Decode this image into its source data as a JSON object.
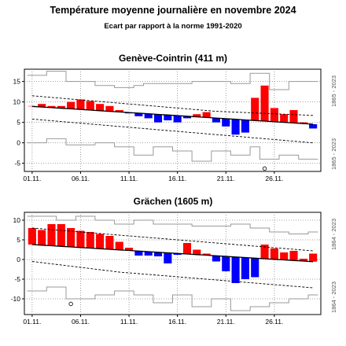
{
  "title": "Température moyenne journalière en novembre 2024",
  "subtitle": "Ecart par rapport à la norme 1991-2020",
  "colors": {
    "above": "#ff0000",
    "below": "#0000ff",
    "norm": "#000000",
    "envelope": "#999999",
    "grid": "#888888"
  },
  "chart_data": [
    {
      "type": "bar",
      "station": "Genève-Cointrin (411 m)",
      "side_label_top": "1865 - 2023",
      "side_label_bottom": "1865 - 2023",
      "x_ticks": [
        "01.11.",
        "06.11.",
        "11.11.",
        "16.11.",
        "21.11.",
        "26.11."
      ],
      "y_ticks": [
        -5,
        0,
        5,
        10,
        15
      ],
      "ylim": [
        -7,
        18
      ],
      "days": [
        1,
        2,
        3,
        4,
        5,
        6,
        7,
        8,
        9,
        10,
        11,
        12,
        13,
        14,
        15,
        16,
        17,
        18,
        19,
        20,
        21,
        22,
        23,
        24,
        25,
        26,
        27,
        28,
        29,
        30
      ],
      "mean_temp": [
        9,
        9.5,
        9,
        9,
        10,
        10.6,
        10.2,
        9.5,
        9,
        8,
        7.2,
        6.5,
        6,
        5,
        5.5,
        5,
        6,
        7,
        7.5,
        5,
        4,
        2,
        2.5,
        11,
        14,
        8.5,
        7,
        8,
        5,
        3.5
      ],
      "norm": [
        8.9,
        8.75,
        8.6,
        8.45,
        8.3,
        8.15,
        8.0,
        7.85,
        7.7,
        7.55,
        7.4,
        7.25,
        7.1,
        6.95,
        6.8,
        6.65,
        6.5,
        6.35,
        6.2,
        6.05,
        5.9,
        5.75,
        5.6,
        5.45,
        5.3,
        5.15,
        5.0,
        4.85,
        4.7,
        4.55
      ],
      "upper_band": [
        11.5,
        11.3,
        11.1,
        10.9,
        10.7,
        10.5,
        10.3,
        10.1,
        9.9,
        9.7,
        9.5,
        9.3,
        9.1,
        8.9,
        8.7,
        8.5,
        8.3,
        8.1,
        7.9,
        7.7,
        7.6,
        7.5,
        7.4,
        7.3,
        7.2,
        7.1,
        7.0,
        6.9,
        6.8,
        6.7
      ],
      "lower_band": [
        5.8,
        5.6,
        5.4,
        5.2,
        5.0,
        4.8,
        4.6,
        4.4,
        4.2,
        4.0,
        3.8,
        3.6,
        3.4,
        3.2,
        3.0,
        2.8,
        2.6,
        2.4,
        2.2,
        2.0,
        1.8,
        1.6,
        1.4,
        1.2,
        1.0,
        0.8,
        0.6,
        0.4,
        0.2,
        0.0
      ],
      "record_max": [
        16.5,
        16.5,
        17.5,
        17.5,
        15,
        15,
        15,
        14,
        14,
        13.5,
        13.5,
        14,
        14.5,
        14.5,
        14.5,
        14.5,
        14.5,
        15,
        15,
        15,
        15,
        14.5,
        14.5,
        17,
        17,
        13,
        13,
        15,
        15,
        15
      ],
      "record_min": [
        0,
        0,
        1,
        1,
        -0.5,
        -0.5,
        -0.5,
        0,
        0,
        -1,
        -1,
        -3,
        -3,
        -1,
        -1,
        -2,
        -2,
        -4.5,
        -4.5,
        -2,
        -2,
        -3,
        -3,
        -1,
        -4,
        -4,
        -3,
        -3,
        -4,
        -4
      ],
      "marker": {
        "day": 25,
        "value": -6.3
      }
    },
    {
      "type": "bar",
      "station": "Grächen (1605 m)",
      "side_label_top": "1864 - 2023",
      "side_label_bottom": "1864 - 2023",
      "x_ticks": [
        "01.11.",
        "06.11.",
        "11.11.",
        "16.11.",
        "21.11.",
        "26.11."
      ],
      "y_ticks": [
        -10,
        -5,
        0,
        5,
        10
      ],
      "ylim": [
        -14,
        12
      ],
      "days": [
        1,
        2,
        3,
        4,
        5,
        6,
        7,
        8,
        9,
        10,
        11,
        12,
        13,
        14,
        15,
        16,
        17,
        18,
        19,
        20,
        21,
        22,
        23,
        24,
        25,
        26,
        27,
        28,
        29,
        30
      ],
      "mean_temp": [
        8,
        7.5,
        9,
        9,
        8,
        7.3,
        7,
        6.5,
        6,
        4.5,
        3,
        1,
        1,
        0.8,
        -1,
        1.2,
        4.2,
        2.5,
        1.5,
        -0.5,
        -3,
        -6,
        -5,
        -4.5,
        3.8,
        2.8,
        1.8,
        2.2,
        0.2,
        1.5
      ],
      "norm": [
        3.8,
        3.65,
        3.5,
        3.35,
        3.2,
        3.05,
        2.9,
        2.75,
        2.6,
        2.45,
        2.3,
        2.15,
        2.0,
        1.85,
        1.7,
        1.55,
        1.4,
        1.25,
        1.1,
        0.95,
        0.8,
        0.65,
        0.5,
        0.35,
        0.2,
        0.05,
        -0.1,
        -0.25,
        -0.4,
        -0.55
      ],
      "upper_band": [
        8.0,
        7.8,
        7.6,
        7.4,
        7.2,
        7.0,
        6.8,
        6.6,
        6.4,
        6.2,
        6.0,
        5.8,
        5.6,
        5.4,
        5.2,
        5.0,
        4.8,
        4.6,
        4.4,
        4.2,
        4.0,
        3.8,
        3.6,
        3.4,
        3.2,
        3.0,
        2.8,
        2.6,
        2.4,
        2.2
      ],
      "lower_band": [
        -0.5,
        -0.8,
        -1.1,
        -1.4,
        -1.7,
        -2.0,
        -2.3,
        -2.6,
        -2.9,
        -3.2,
        -3.4,
        -3.6,
        -3.8,
        -4.0,
        -4.2,
        -4.4,
        -4.6,
        -4.8,
        -5.0,
        -5.2,
        -5.4,
        -5.6,
        -5.8,
        -6.0,
        -6.2,
        -6.4,
        -6.6,
        -6.8,
        -7.0,
        -7.2
      ],
      "record_max": [
        11,
        11,
        11,
        10,
        10,
        11,
        11,
        10,
        10,
        9,
        9,
        10,
        10,
        9,
        9,
        9,
        9,
        8.5,
        8.5,
        8.5,
        8.5,
        9,
        9,
        8,
        8,
        7,
        7,
        6.5,
        6.5,
        7
      ],
      "record_min": [
        -8,
        -8,
        -7,
        -7,
        -10,
        -10,
        -10,
        -9,
        -9,
        -8,
        -8,
        -9,
        -9,
        -11,
        -11,
        -9,
        -9,
        -12,
        -12,
        -10,
        -10,
        -13,
        -13,
        -12,
        -12,
        -11,
        -11,
        -10,
        -10,
        -9
      ],
      "marker": {
        "day": 5,
        "value": -11.3
      }
    }
  ]
}
